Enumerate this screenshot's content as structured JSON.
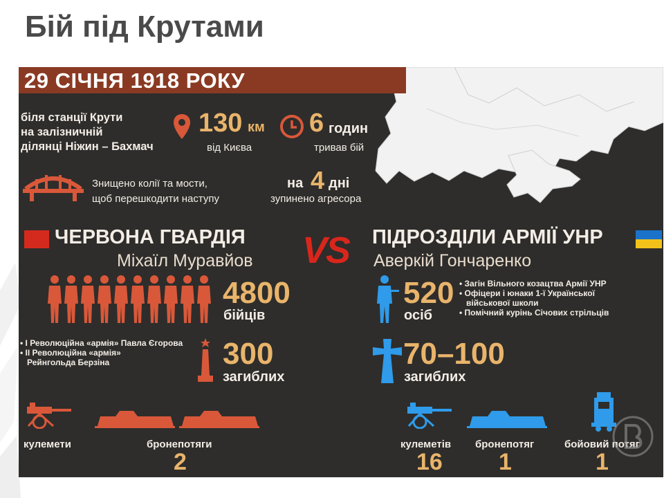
{
  "slide": {
    "title": "Бій під Крутами"
  },
  "infographic": {
    "headline": "29 СІЧНЯ 1918 РОКУ",
    "location": "біля станції Крути\nна залізничній\nділянці Ніжин – Бахмач",
    "distance": {
      "value": "130",
      "unit": "км",
      "caption": "від Києва"
    },
    "duration": {
      "value": "6",
      "unit": "годин",
      "caption": "тривав бій"
    },
    "destruction": "Знищено колії та мости,\nщоб перешкодити наступу",
    "stopped": {
      "prefix": "на",
      "value": "4",
      "unit": "дні",
      "caption": "зупинено агресора"
    },
    "vs_label": "VS",
    "left_side": {
      "title": "ЧЕРВОНА ГВАРДІЯ",
      "leader": "Міхаїл Муравйов",
      "fighters": {
        "value": "4800",
        "label": "бійців"
      },
      "units": [
        "• І Революційна «армія» Павла Єгорова",
        "• ІІ Революційна «армія»",
        "Рейнгольда Берзіна"
      ],
      "killed": {
        "value": "300",
        "label": "загиблих"
      },
      "machine_guns": {
        "label": "кулемети"
      },
      "armored_trains": {
        "label": "бронепотяги",
        "value": "2"
      }
    },
    "right_side": {
      "title": "ПІДРОЗДІЛИ АРМІЇ УНР",
      "leader": "Аверкій Гончаренко",
      "fighters": {
        "value": "520",
        "label": "осіб"
      },
      "units": [
        "• Загін Вільного козацтва Армії УНР",
        "• Офіцери і юнаки 1-ї Української",
        "військової школи",
        "• Помічний курінь Січових стрільців"
      ],
      "killed": {
        "value": "70–100",
        "label": "загиблих"
      },
      "machine_guns": {
        "label": "кулеметів",
        "value": "16"
      },
      "armored_train": {
        "label": "бронепотяг",
        "value": "1"
      },
      "battle_train": {
        "label": "бойовий потяг",
        "value": "1"
      }
    },
    "colors": {
      "background": "#2e2d2b",
      "headline_bar": "#8a3a23",
      "accent_orange": "#e9b46b",
      "red_side": "#d9583a",
      "blue_side": "#2f9bea",
      "vs_red": "#d9261c",
      "ua_blue": "#1a73c9",
      "ua_yellow": "#f2c21a"
    },
    "icons": [
      "map-pin-icon",
      "clock-icon",
      "bridge-icon",
      "soldier-icon",
      "obelisk-icon",
      "cross-icon",
      "machine-gun-icon",
      "armored-train-icon",
      "locomotive-icon",
      "watermark-logo"
    ]
  }
}
